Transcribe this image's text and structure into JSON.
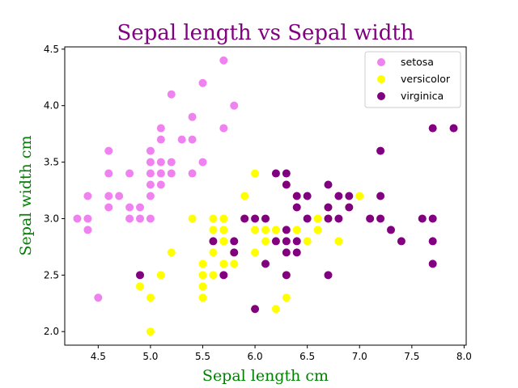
{
  "colors": {
    "title": "#800080",
    "axis_label": "#008000",
    "setosa": "#ee82ee",
    "versicolor": "#ffff00",
    "virginica": "#800080"
  },
  "chart_data": {
    "type": "scatter",
    "title": "Sepal length vs Sepal width",
    "xlabel": "Sepal length cm",
    "ylabel": "Sepal width cm",
    "xlim": [
      4.18,
      8.02
    ],
    "ylim": [
      1.88,
      4.52
    ],
    "xticks": [
      4.5,
      5.0,
      5.5,
      6.0,
      6.5,
      7.0,
      7.5,
      8.0
    ],
    "yticks": [
      2.0,
      2.5,
      3.0,
      3.5,
      4.0,
      4.5
    ],
    "legend_position": "top-right",
    "grid": false,
    "series": [
      {
        "name": "setosa",
        "color": "#ee82ee",
        "points": [
          [
            4.3,
            3.0
          ],
          [
            4.4,
            3.2
          ],
          [
            4.4,
            3.0
          ],
          [
            4.4,
            2.9
          ],
          [
            4.5,
            2.3
          ],
          [
            4.6,
            3.6
          ],
          [
            4.6,
            3.4
          ],
          [
            4.6,
            3.2
          ],
          [
            4.6,
            3.1
          ],
          [
            4.7,
            3.2
          ],
          [
            4.8,
            3.4
          ],
          [
            4.8,
            3.1
          ],
          [
            4.8,
            3.0
          ],
          [
            4.9,
            3.1
          ],
          [
            4.9,
            3.0
          ],
          [
            5.0,
            3.6
          ],
          [
            5.0,
            3.5
          ],
          [
            5.0,
            3.4
          ],
          [
            5.0,
            3.3
          ],
          [
            5.0,
            3.2
          ],
          [
            5.0,
            3.0
          ],
          [
            5.1,
            3.8
          ],
          [
            5.1,
            3.7
          ],
          [
            5.1,
            3.5
          ],
          [
            5.1,
            3.4
          ],
          [
            5.1,
            3.3
          ],
          [
            5.2,
            4.1
          ],
          [
            5.2,
            3.5
          ],
          [
            5.2,
            3.4
          ],
          [
            5.3,
            3.7
          ],
          [
            5.4,
            3.9
          ],
          [
            5.4,
            3.7
          ],
          [
            5.4,
            3.4
          ],
          [
            5.5,
            4.2
          ],
          [
            5.5,
            3.5
          ],
          [
            5.7,
            4.4
          ],
          [
            5.7,
            3.8
          ],
          [
            5.8,
            4.0
          ]
        ]
      },
      {
        "name": "versicolor",
        "color": "#ffff00",
        "points": [
          [
            4.9,
            2.4
          ],
          [
            5.0,
            2.3
          ],
          [
            5.0,
            2.0
          ],
          [
            5.1,
            2.5
          ],
          [
            5.2,
            2.7
          ],
          [
            5.4,
            3.0
          ],
          [
            5.5,
            2.6
          ],
          [
            5.5,
            2.5
          ],
          [
            5.5,
            2.4
          ],
          [
            5.5,
            2.3
          ],
          [
            5.6,
            3.0
          ],
          [
            5.6,
            2.9
          ],
          [
            5.6,
            2.7
          ],
          [
            5.6,
            2.5
          ],
          [
            5.7,
            3.0
          ],
          [
            5.7,
            2.9
          ],
          [
            5.7,
            2.8
          ],
          [
            5.7,
            2.6
          ],
          [
            5.8,
            2.7
          ],
          [
            5.8,
            2.6
          ],
          [
            5.9,
            3.2
          ],
          [
            5.9,
            3.0
          ],
          [
            6.0,
            3.4
          ],
          [
            6.0,
            2.9
          ],
          [
            6.0,
            2.7
          ],
          [
            6.0,
            2.2
          ],
          [
            6.1,
            3.0
          ],
          [
            6.1,
            2.9
          ],
          [
            6.1,
            2.8
          ],
          [
            6.2,
            2.9
          ],
          [
            6.2,
            2.2
          ],
          [
            6.3,
            3.3
          ],
          [
            6.3,
            2.5
          ],
          [
            6.3,
            2.3
          ],
          [
            6.4,
            2.9
          ],
          [
            6.4,
            3.2
          ],
          [
            6.5,
            2.8
          ],
          [
            6.6,
            3.0
          ],
          [
            6.6,
            2.9
          ],
          [
            6.7,
            3.1
          ],
          [
            6.7,
            3.0
          ],
          [
            6.8,
            2.8
          ],
          [
            6.9,
            3.1
          ],
          [
            7.0,
            3.2
          ]
        ]
      },
      {
        "name": "virginica",
        "color": "#800080",
        "points": [
          [
            4.9,
            2.5
          ],
          [
            5.6,
            2.8
          ],
          [
            5.7,
            2.5
          ],
          [
            5.8,
            2.8
          ],
          [
            5.8,
            2.7
          ],
          [
            5.9,
            3.0
          ],
          [
            6.0,
            3.0
          ],
          [
            6.0,
            2.2
          ],
          [
            6.1,
            3.0
          ],
          [
            6.1,
            2.6
          ],
          [
            6.2,
            3.4
          ],
          [
            6.2,
            2.8
          ],
          [
            6.3,
            3.4
          ],
          [
            6.3,
            3.3
          ],
          [
            6.3,
            2.9
          ],
          [
            6.3,
            2.8
          ],
          [
            6.3,
            2.7
          ],
          [
            6.3,
            2.5
          ],
          [
            6.4,
            3.2
          ],
          [
            6.4,
            3.1
          ],
          [
            6.4,
            2.8
          ],
          [
            6.4,
            2.7
          ],
          [
            6.5,
            3.2
          ],
          [
            6.5,
            3.0
          ],
          [
            6.7,
            3.3
          ],
          [
            6.7,
            3.1
          ],
          [
            6.7,
            3.0
          ],
          [
            6.7,
            2.5
          ],
          [
            6.8,
            3.2
          ],
          [
            6.8,
            3.0
          ],
          [
            6.9,
            3.2
          ],
          [
            6.9,
            3.1
          ],
          [
            7.1,
            3.0
          ],
          [
            7.2,
            3.6
          ],
          [
            7.2,
            3.2
          ],
          [
            7.2,
            3.0
          ],
          [
            7.3,
            2.9
          ],
          [
            7.4,
            2.8
          ],
          [
            7.6,
            3.0
          ],
          [
            7.7,
            3.8
          ],
          [
            7.7,
            3.0
          ],
          [
            7.7,
            2.8
          ],
          [
            7.7,
            2.6
          ],
          [
            7.9,
            3.8
          ]
        ]
      }
    ]
  }
}
